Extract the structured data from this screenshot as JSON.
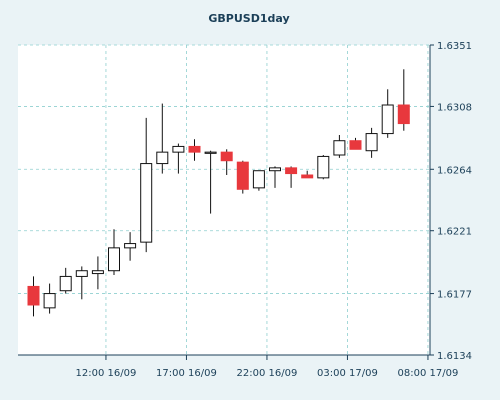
{
  "chart_data": {
    "type": "candlestick",
    "title": "GBPUSD1day",
    "xlabel": "",
    "ylabel": "",
    "ylim": [
      1.6134,
      1.6351
    ],
    "yticks": [
      1.6351,
      1.6308,
      1.6264,
      1.6221,
      1.6177,
      1.6134
    ],
    "ytick_labels": [
      "1.6351",
      "1.6308",
      "1.6264",
      "1.6221",
      "1.6177",
      "1.6134"
    ],
    "xtick_labels": [
      "12:00 16/09",
      "17:00 16/09",
      "22:00 16/09",
      "03:00 17/09",
      "08:00 17/09"
    ],
    "xtick_positions": [
      4.5,
      9.5,
      14.5,
      19.5,
      24.5
    ],
    "grid": true,
    "colors": {
      "up": "#ffffff",
      "down": "#e8383d",
      "outline": "#111111",
      "grid": "#8fcfcf"
    },
    "candles": [
      {
        "o": 1.6182,
        "h": 1.6189,
        "l": 1.6161,
        "c": 1.6169
      },
      {
        "o": 1.6167,
        "h": 1.6184,
        "l": 1.6163,
        "c": 1.6177
      },
      {
        "o": 1.6179,
        "h": 1.6195,
        "l": 1.6177,
        "c": 1.6189
      },
      {
        "o": 1.6189,
        "h": 1.6196,
        "l": 1.6173,
        "c": 1.6193
      },
      {
        "o": 1.6191,
        "h": 1.6203,
        "l": 1.618,
        "c": 1.6193
      },
      {
        "o": 1.6193,
        "h": 1.6222,
        "l": 1.619,
        "c": 1.6209
      },
      {
        "o": 1.6209,
        "h": 1.622,
        "l": 1.62,
        "c": 1.6212
      },
      {
        "o": 1.6213,
        "h": 1.63,
        "l": 1.6206,
        "c": 1.6268
      },
      {
        "o": 1.6268,
        "h": 1.631,
        "l": 1.6261,
        "c": 1.6276
      },
      {
        "o": 1.6276,
        "h": 1.6282,
        "l": 1.6261,
        "c": 1.628
      },
      {
        "o": 1.628,
        "h": 1.6285,
        "l": 1.627,
        "c": 1.6276
      },
      {
        "o": 1.6276,
        "h": 1.6277,
        "l": 1.6233,
        "c": 1.6276
      },
      {
        "o": 1.6276,
        "h": 1.6278,
        "l": 1.626,
        "c": 1.627
      },
      {
        "o": 1.6269,
        "h": 1.627,
        "l": 1.6247,
        "c": 1.625
      },
      {
        "o": 1.6251,
        "h": 1.6263,
        "l": 1.6249,
        "c": 1.6263
      },
      {
        "o": 1.6263,
        "h": 1.6266,
        "l": 1.6251,
        "c": 1.6265
      },
      {
        "o": 1.6265,
        "h": 1.6266,
        "l": 1.6251,
        "c": 1.6261
      },
      {
        "o": 1.626,
        "h": 1.6263,
        "l": 1.6258,
        "c": 1.6258
      },
      {
        "o": 1.6258,
        "h": 1.6274,
        "l": 1.6257,
        "c": 1.6273
      },
      {
        "o": 1.6274,
        "h": 1.6288,
        "l": 1.6272,
        "c": 1.6284
      },
      {
        "o": 1.6284,
        "h": 1.6286,
        "l": 1.6278,
        "c": 1.6278
      },
      {
        "o": 1.6277,
        "h": 1.6293,
        "l": 1.6272,
        "c": 1.6289
      },
      {
        "o": 1.6289,
        "h": 1.632,
        "l": 1.6286,
        "c": 1.6309
      },
      {
        "o": 1.6309,
        "h": 1.6334,
        "l": 1.6291,
        "c": 1.6296
      }
    ]
  }
}
